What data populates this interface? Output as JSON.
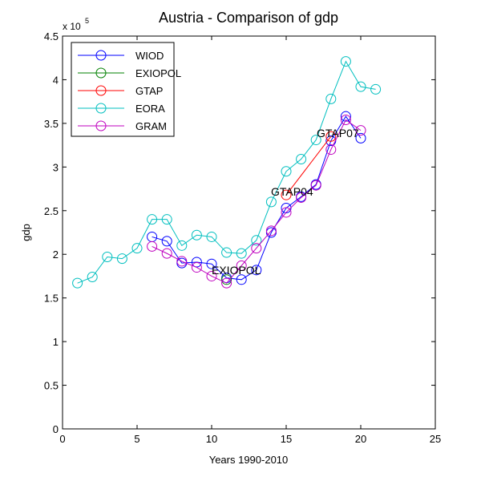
{
  "chart_data": {
    "type": "line",
    "title": "Austria - Comparison of gdp",
    "x_label": "Years 1990-2010",
    "y_label": "gdp",
    "y_multiplier": "x 10",
    "y_multiplier_exponent": "5",
    "xlim": [
      0,
      25
    ],
    "xticks": [
      0,
      5,
      10,
      15,
      20,
      25
    ],
    "ylim": [
      0,
      4.5
    ],
    "yticks": [
      0,
      0.5,
      1,
      1.5,
      2,
      2.5,
      3,
      3.5,
      4,
      4.5
    ],
    "legend": "upper left",
    "series": [
      {
        "name": "WIOD",
        "color": "#0000ff",
        "x": [
          6,
          7,
          8,
          9,
          10,
          11,
          12,
          13,
          14,
          15,
          16,
          17,
          18,
          19,
          20
        ],
        "values": [
          2.2,
          2.15,
          1.9,
          1.91,
          1.89,
          1.73,
          1.71,
          1.82,
          2.25,
          2.53,
          2.66,
          2.8,
          3.3,
          3.58,
          3.33
        ]
      },
      {
        "name": "EXIOPOL",
        "color": "#008000",
        "x": [
          11
        ],
        "values": [
          1.71
        ]
      },
      {
        "name": "GTAP",
        "color": "#ff0000",
        "x": [
          15,
          18
        ],
        "values": [
          2.68,
          3.35
        ]
      },
      {
        "name": "EORA",
        "color": "#00bfbf",
        "x": [
          1,
          2,
          3,
          4,
          5,
          6,
          7,
          8,
          9,
          10,
          11,
          12,
          13,
          14,
          15,
          16,
          17,
          18,
          19,
          20,
          21
        ],
        "values": [
          1.67,
          1.74,
          1.97,
          1.95,
          2.07,
          2.4,
          2.4,
          2.1,
          2.22,
          2.2,
          2.02,
          2.01,
          2.16,
          2.6,
          2.95,
          3.09,
          3.31,
          3.78,
          4.21,
          3.92,
          3.89
        ]
      },
      {
        "name": "GRAM",
        "color": "#bf00bf",
        "x": [
          6,
          7,
          8,
          9,
          10,
          11,
          12,
          13,
          14,
          15,
          16,
          17,
          18,
          19,
          20
        ],
        "values": [
          2.09,
          2.01,
          1.92,
          1.85,
          1.75,
          1.67,
          1.87,
          2.07,
          2.27,
          2.48,
          2.65,
          2.79,
          3.2,
          3.54,
          3.42
        ]
      }
    ],
    "annotations": [
      "EXIOPOL",
      "GTAP04",
      "GTAP07"
    ]
  }
}
